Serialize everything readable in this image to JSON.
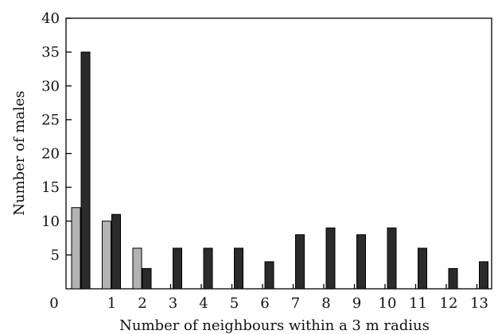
{
  "chart_data": {
    "type": "bar",
    "xlabel": "Number of neighbours within a 3 m radius",
    "ylabel": "Number of males",
    "ylim": [
      0,
      40
    ],
    "yticks": [
      0,
      5,
      10,
      15,
      20,
      25,
      30,
      35,
      40
    ],
    "yticklabels": [
      "0",
      "5",
      "10",
      "15",
      "20",
      "25",
      "30",
      "35",
      "40"
    ],
    "categories": [
      "0",
      "1",
      "2",
      "3",
      "4",
      "5",
      "6",
      "7",
      "8",
      "9",
      "10",
      "11",
      "12",
      "13"
    ],
    "series": [
      {
        "color": "#b3b3b3",
        "values": [
          12,
          10,
          6,
          0,
          0,
          0,
          0,
          0,
          0,
          0,
          0,
          0,
          0,
          0
        ]
      },
      {
        "color": "#2b2b2b",
        "values": [
          35,
          11,
          3,
          6,
          6,
          6,
          4,
          8,
          9,
          8,
          9,
          6,
          3,
          4
        ]
      }
    ],
    "grid": false
  }
}
